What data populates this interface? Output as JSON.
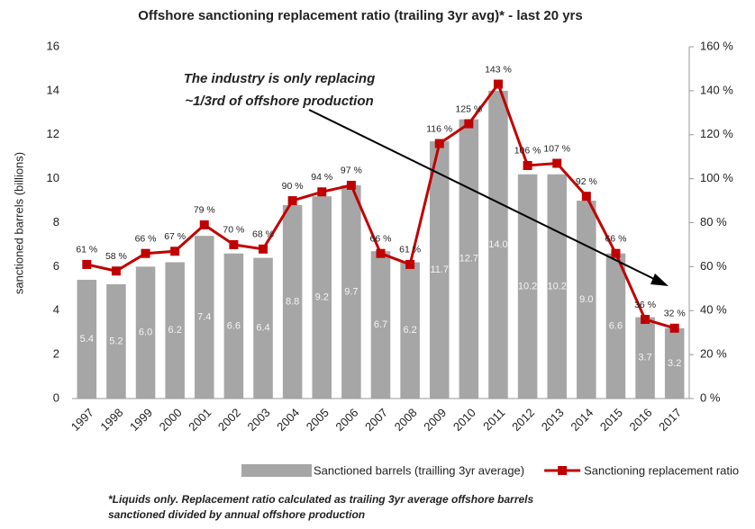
{
  "chart_data": {
    "type": "bar",
    "title": "Offshore sanctioning replacement ratio (trailing 3yr avg)* - last 20 yrs",
    "y_label": "sanctioned barrels (billions)",
    "annotation": [
      "The industry is only replacing",
      "~1/3rd of offshore production"
    ],
    "footnote": [
      "*Liquids only. Replacement ratio calculated as trailing 3yr average offshore barrels",
      "sanctioned divided by annual offshore production"
    ],
    "categories": [
      "1997",
      "1998",
      "1999",
      "2000",
      "2001",
      "2002",
      "2003",
      "2004",
      "2005",
      "2006",
      "2007",
      "2008",
      "2009",
      "2010",
      "2011",
      "2012",
      "2013",
      "2014",
      "2015",
      "2016",
      "2017"
    ],
    "series": [
      {
        "name": "Sanctioned barrels (trailling 3yr average)",
        "type": "bar",
        "color": "#a6a6a6",
        "values": [
          5.4,
          5.2,
          6.0,
          6.2,
          7.4,
          6.6,
          6.4,
          8.8,
          9.2,
          9.7,
          6.7,
          6.2,
          11.7,
          12.7,
          14.0,
          10.2,
          10.2,
          9.0,
          6.6,
          3.7,
          3.2
        ],
        "value_labels": [
          "5.4",
          "5.2",
          "6.0",
          "6.2",
          "7.4",
          "6.6",
          "6.4",
          "8.8",
          "9.2",
          "9.7",
          "6.7",
          "6.2",
          "11.7",
          "12.7",
          "14.0",
          "10.2",
          "10.2",
          "9.0",
          "6.6",
          "3.7",
          "3.2"
        ]
      },
      {
        "name": "Sanctioning replacement ratio",
        "type": "line",
        "axis": "y2",
        "color": "#c00000",
        "values": [
          61,
          58,
          66,
          67,
          79,
          70,
          68,
          90,
          94,
          97,
          66,
          61,
          116,
          125,
          143,
          106,
          107,
          92,
          66,
          36,
          32
        ],
        "value_labels": [
          "61 %",
          "58 %",
          "66 %",
          "67 %",
          "79 %",
          "70 %",
          "68 %",
          "90 %",
          "94 %",
          "97 %",
          "66 %",
          "61 %",
          "116 %",
          "125 %",
          "143 %",
          "106 %",
          "107 %",
          "92 %",
          "66 %",
          "36 %",
          "32 %"
        ]
      }
    ],
    "ylim": [
      0,
      16
    ],
    "yticks": [
      0,
      2,
      4,
      6,
      8,
      10,
      12,
      14,
      16
    ],
    "y2lim": [
      0,
      160
    ],
    "y2ticks": [
      {
        "value": 0,
        "label": "0 %"
      },
      {
        "value": 20,
        "label": "20 %"
      },
      {
        "value": 40,
        "label": "40 %"
      },
      {
        "value": 60,
        "label": "60 %"
      },
      {
        "value": 80,
        "label": "80 %"
      },
      {
        "value": 100,
        "label": "100 %"
      },
      {
        "value": 120,
        "label": "120 %"
      },
      {
        "value": 140,
        "label": "140 %"
      },
      {
        "value": 160,
        "label": "160 %"
      }
    ],
    "grid": false,
    "legend": "bottom"
  }
}
